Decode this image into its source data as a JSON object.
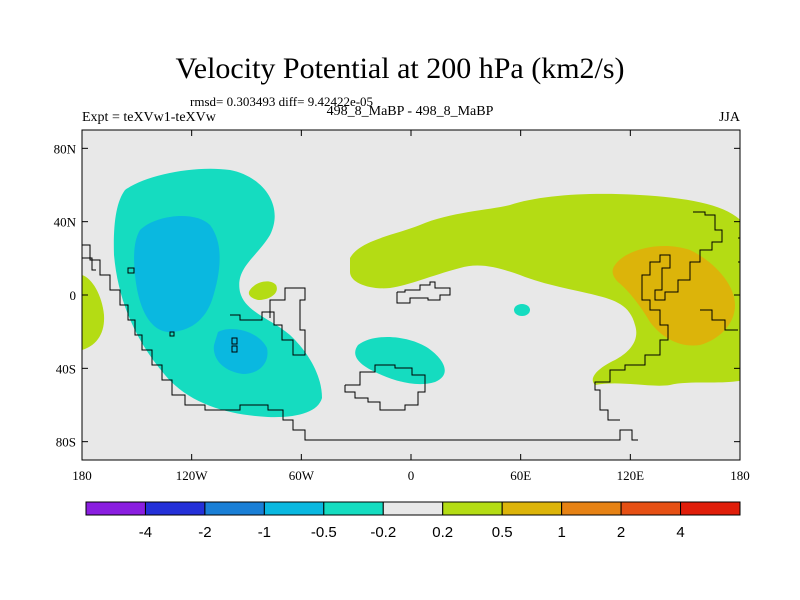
{
  "chart_data": {
    "type": "heatmap",
    "title": "Velocity Potential at 200 hPa (km2/s)",
    "stats_label": "rmsd= 0.303493 diff= 9.42422e-05",
    "experiment_label": "Expt = teXVw1-teXVw",
    "cases_label": "498_8_MaBP - 498_8_MaBP",
    "season": "JJA",
    "x_range": [
      -180,
      180
    ],
    "y_range": [
      -90,
      90
    ],
    "x_ticks": [
      {
        "value": -180,
        "label": "180"
      },
      {
        "value": -120,
        "label": "120W"
      },
      {
        "value": -60,
        "label": "60W"
      },
      {
        "value": 0,
        "label": "0"
      },
      {
        "value": 60,
        "label": "60E"
      },
      {
        "value": 120,
        "label": "120E"
      },
      {
        "value": 180,
        "label": "180"
      }
    ],
    "y_ticks": [
      {
        "value": 80,
        "label": "80N"
      },
      {
        "value": 40,
        "label": "40N"
      },
      {
        "value": 0,
        "label": "0"
      },
      {
        "value": -40,
        "label": "40S"
      },
      {
        "value": -80,
        "label": "80S"
      }
    ],
    "colorbar": {
      "colors": [
        "#8a1ee0",
        "#2430d8",
        "#1a7fd6",
        "#0ab8e0",
        "#15dcc0",
        "#e8e8e8",
        "#b4dc14",
        "#dcb40a",
        "#e68214",
        "#e65014",
        "#e01e0a"
      ],
      "labels": [
        "-4",
        "-2",
        "-1",
        "-0.5",
        "-0.2",
        "0.2",
        "0.5",
        "1",
        "2",
        "4"
      ]
    },
    "regions": [
      {
        "level": "-0.5 to -0.2",
        "color": "#15dcc0",
        "center": [
          -115,
          25
        ],
        "extent": "Eastern Pacific / Central America, 75S-50N"
      },
      {
        "level": "-1 to -0.5",
        "color": "#0ab8e0",
        "center": [
          -120,
          15
        ],
        "extent": "Eastern tropical Pacific"
      },
      {
        "level": "-1 to -0.5",
        "color": "#0ab8e0",
        "center": [
          -90,
          -32
        ],
        "extent": "South America west coast"
      },
      {
        "level": "-0.5 to -0.2",
        "color": "#15dcc0",
        "center": [
          -30,
          -32
        ],
        "extent": "South Atlantic"
      },
      {
        "level": "0.2 to 0.5",
        "color": "#b4dc14",
        "center": [
          90,
          15
        ],
        "extent": "Eurasia to Australia"
      },
      {
        "level": "0.5 to 1",
        "color": "#dcb40a",
        "center": [
          150,
          0
        ],
        "extent": "Western Pacific warm pool"
      },
      {
        "level": "0.2 to 0.5",
        "color": "#b4dc14",
        "center": [
          -180,
          0
        ],
        "extent": "Dateline edge"
      }
    ]
  }
}
